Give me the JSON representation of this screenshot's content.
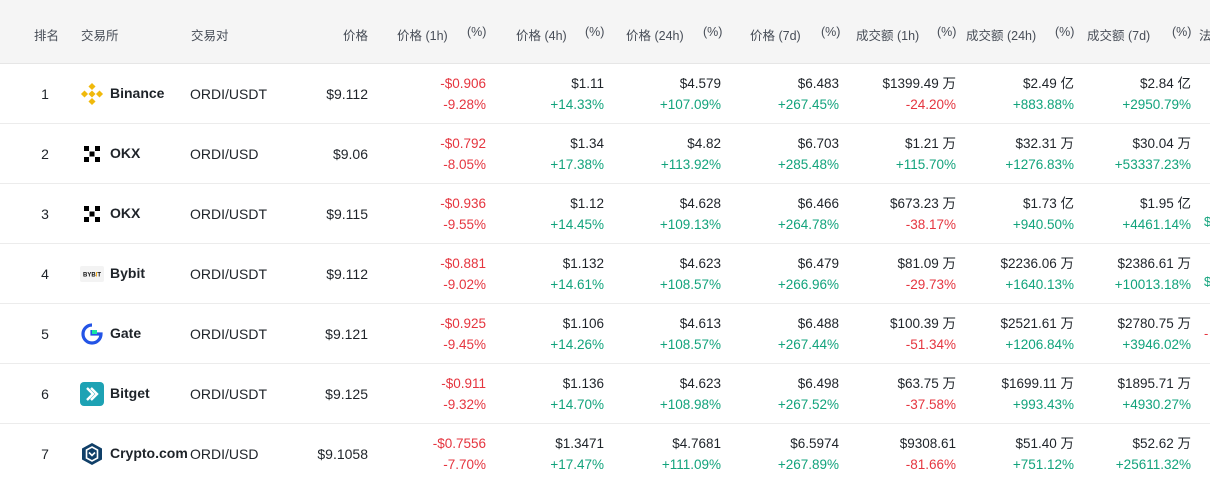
{
  "headers": {
    "rank": "排名",
    "exchange": "交易所",
    "pair": "交易对",
    "price": "价格",
    "p1h": "价格 (1h)",
    "p4h": "价格 (4h)",
    "p24h": "价格 (24h)",
    "p7d": "价格 (7d)",
    "v1h": "成交额 (1h)",
    "v24h": "成交额 (24h)",
    "v7d": "成交额 (7d)",
    "pct": "(%)",
    "cut": "法"
  },
  "rows": [
    {
      "rank": "1",
      "exchange": "Binance",
      "icon": "binance-icon",
      "pair": "ORDI/USDT",
      "price": "$9.112",
      "p1h": "-$0.906",
      "p1h_pct": "-9.28%",
      "p4h": "$1.11",
      "p4h_pct": "+14.33%",
      "p24h": "$4.579",
      "p24h_pct": "+107.09%",
      "p7d": "$6.483",
      "p7d_pct": "+267.45%",
      "v1h": "$1399.49 万",
      "v1h_pct": "-24.20%",
      "v24h": "$2.49 亿",
      "v24h_pct": "+883.88%",
      "v7d": "$2.84 亿",
      "v7d_pct": "+2950.79%",
      "edge": ""
    },
    {
      "rank": "2",
      "exchange": "OKX",
      "icon": "okx-icon",
      "pair": "ORDI/USD",
      "price": "$9.06",
      "p1h": "-$0.792",
      "p1h_pct": "-8.05%",
      "p4h": "$1.34",
      "p4h_pct": "+17.38%",
      "p24h": "$4.82",
      "p24h_pct": "+113.92%",
      "p7d": "$6.703",
      "p7d_pct": "+285.48%",
      "v1h": "$1.21 万",
      "v1h_pct": "+115.70%",
      "v24h": "$32.31 万",
      "v24h_pct": "+1276.83%",
      "v7d": "$30.04 万",
      "v7d_pct": "+53337.23%",
      "edge": ""
    },
    {
      "rank": "3",
      "exchange": "OKX",
      "icon": "okx-icon",
      "pair": "ORDI/USDT",
      "price": "$9.115",
      "p1h": "-$0.936",
      "p1h_pct": "-9.55%",
      "p4h": "$1.12",
      "p4h_pct": "+14.45%",
      "p24h": "$4.628",
      "p24h_pct": "+109.13%",
      "p7d": "$6.466",
      "p7d_pct": "+264.78%",
      "v1h": "$673.23 万",
      "v1h_pct": "-38.17%",
      "v24h": "$1.73 亿",
      "v24h_pct": "+940.50%",
      "v7d": "$1.95 亿",
      "v7d_pct": "+4461.14%",
      "edge": "$"
    },
    {
      "rank": "4",
      "exchange": "Bybit",
      "icon": "bybit-icon",
      "pair": "ORDI/USDT",
      "price": "$9.112",
      "p1h": "-$0.881",
      "p1h_pct": "-9.02%",
      "p4h": "$1.132",
      "p4h_pct": "+14.61%",
      "p24h": "$4.623",
      "p24h_pct": "+108.57%",
      "p7d": "$6.479",
      "p7d_pct": "+266.96%",
      "v1h": "$81.09 万",
      "v1h_pct": "-29.73%",
      "v24h": "$2236.06 万",
      "v24h_pct": "+1640.13%",
      "v7d": "$2386.61 万",
      "v7d_pct": "+10013.18%",
      "edge": "$"
    },
    {
      "rank": "5",
      "exchange": "Gate",
      "icon": "gate-icon",
      "pair": "ORDI/USDT",
      "price": "$9.121",
      "p1h": "-$0.925",
      "p1h_pct": "-9.45%",
      "p4h": "$1.106",
      "p4h_pct": "+14.26%",
      "p24h": "$4.613",
      "p24h_pct": "+108.57%",
      "p7d": "$6.488",
      "p7d_pct": "+267.44%",
      "v1h": "$100.39 万",
      "v1h_pct": "-51.34%",
      "v24h": "$2521.61 万",
      "v24h_pct": "+1206.84%",
      "v7d": "$2780.75 万",
      "v7d_pct": "+3946.02%",
      "edge": "-"
    },
    {
      "rank": "6",
      "exchange": "Bitget",
      "icon": "bitget-icon",
      "pair": "ORDI/USDT",
      "price": "$9.125",
      "p1h": "-$0.911",
      "p1h_pct": "-9.32%",
      "p4h": "$1.136",
      "p4h_pct": "+14.70%",
      "p24h": "$4.623",
      "p24h_pct": "+108.98%",
      "p7d": "$6.498",
      "p7d_pct": "+267.52%",
      "v1h": "$63.75 万",
      "v1h_pct": "-37.58%",
      "v24h": "$1699.11 万",
      "v24h_pct": "+993.43%",
      "v7d": "$1895.71 万",
      "v7d_pct": "+4930.27%",
      "edge": ""
    },
    {
      "rank": "7",
      "exchange": "Crypto.com",
      "icon": "cryptocom-icon",
      "pair": "ORDI/USD",
      "price": "$9.1058",
      "p1h": "-$0.7556",
      "p1h_pct": "-7.70%",
      "p4h": "$1.3471",
      "p4h_pct": "+17.47%",
      "p24h": "$4.7681",
      "p24h_pct": "+111.09%",
      "p7d": "$6.5974",
      "p7d_pct": "+267.89%",
      "v1h": "$9308.61",
      "v1h_pct": "-81.66%",
      "v24h": "$51.40 万",
      "v24h_pct": "+751.12%",
      "v7d": "$52.62 万",
      "v7d_pct": "+25611.32%",
      "edge": ""
    }
  ],
  "colors": {
    "up": "#12a37c",
    "down": "#e5353f",
    "binance": "#f0b90b",
    "bitget": "#1da2b4",
    "gate": "#2354e6",
    "cryptocom": "#103f68"
  }
}
